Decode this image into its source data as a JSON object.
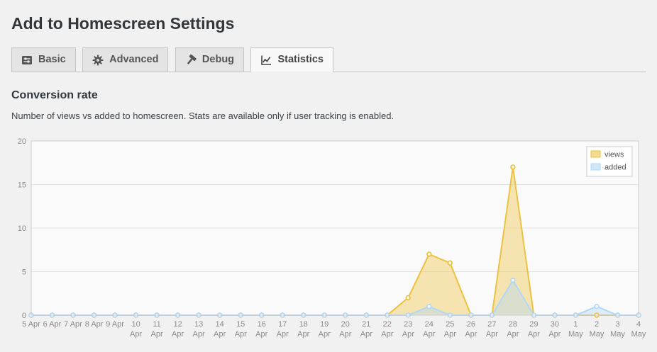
{
  "page": {
    "title": "Add to Homescreen Settings",
    "section_heading": "Conversion rate",
    "section_description": "Number of views vs added to homescreen. Stats are available only if user tracking is enabled."
  },
  "tabs": [
    {
      "label": "Basic",
      "icon": "sliders-icon",
      "active": false
    },
    {
      "label": "Advanced",
      "icon": "gear-icon",
      "active": false
    },
    {
      "label": "Debug",
      "icon": "hammer-icon",
      "active": false
    },
    {
      "label": "Statistics",
      "icon": "chart-icon",
      "active": true
    }
  ],
  "colors": {
    "views_series": "#edc240",
    "added_series": "#afd8f8",
    "grid_line": "#e4e4e4",
    "plot_border": "#cccccc",
    "axis_text": "#8a8a8a"
  },
  "chart_data": {
    "type": "area",
    "title": "",
    "xlabel": "",
    "ylabel": "",
    "ylim": [
      0,
      20
    ],
    "yticks": [
      0,
      5,
      10,
      15,
      20
    ],
    "grid": true,
    "legend_position": "top-right",
    "categories": [
      "5 Apr",
      "6 Apr",
      "7 Apr",
      "8 Apr",
      "9 Apr",
      "10 Apr",
      "11 Apr",
      "12 Apr",
      "13 Apr",
      "14 Apr",
      "15 Apr",
      "16 Apr",
      "17 Apr",
      "18 Apr",
      "19 Apr",
      "20 Apr",
      "21 Apr",
      "22 Apr",
      "23 Apr",
      "24 Apr",
      "25 Apr",
      "26 Apr",
      "27 Apr",
      "28 Apr",
      "29 Apr",
      "30 Apr",
      "1 May",
      "2 May",
      "3 May",
      "4 May"
    ],
    "series": [
      {
        "name": "views",
        "color": "#edc240",
        "values": [
          0,
          0,
          0,
          0,
          0,
          0,
          0,
          0,
          0,
          0,
          0,
          0,
          0,
          0,
          0,
          0,
          0,
          0,
          2,
          7,
          6,
          0,
          0,
          17,
          0,
          0,
          0,
          0,
          0,
          0
        ]
      },
      {
        "name": "added",
        "color": "#afd8f8",
        "values": [
          0,
          0,
          0,
          0,
          0,
          0,
          0,
          0,
          0,
          0,
          0,
          0,
          0,
          0,
          0,
          0,
          0,
          0,
          0,
          1,
          0,
          0,
          0,
          4,
          0,
          0,
          0,
          1,
          0,
          0
        ]
      }
    ]
  }
}
